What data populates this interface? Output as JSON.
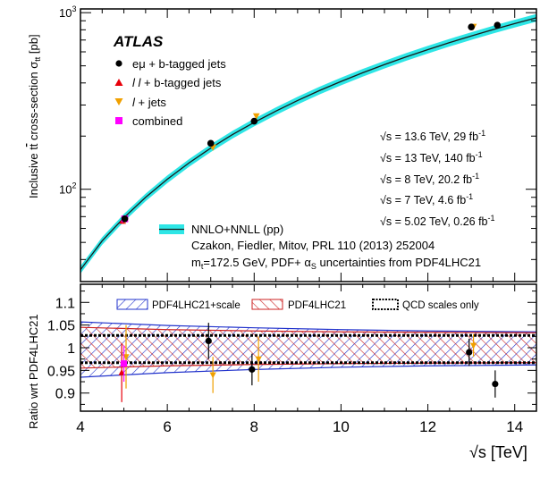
{
  "chart_data": [
    {
      "type": "scatter",
      "panel": "main",
      "title": "",
      "brand": "ATLAS",
      "ylabel_main": "Inclusive t",
      "ylabel_tbar": "t",
      "ylabel_rest": " cross-section  σ",
      "ylabel_sub": "tt",
      "ylabel_unit": " [pb]",
      "xlim": [
        4,
        14.5
      ],
      "ylim": [
        30,
        1050
      ],
      "yscale": "log",
      "y_ticks": [
        {
          "value": 100,
          "base": "10",
          "exp": "2"
        },
        {
          "value": 1000,
          "base": "10",
          "exp": "3"
        }
      ],
      "legend": [
        {
          "label": "eμ + b-tagged jets",
          "marker": "circle",
          "color": "#000000"
        },
        {
          "label_l1": "l",
          "label_l2": "l",
          "label_rest": " + b-tagged jets",
          "marker": "triangle-up",
          "color": "#e8000a"
        },
        {
          "label_l1": "l",
          "label_rest": " + jets",
          "marker": "triangle-down",
          "color": "#f0a000"
        },
        {
          "label": "combined",
          "marker": "square",
          "color": "#ff00ff"
        }
      ],
      "series": [
        {
          "name": "eμ + b-tagged jets",
          "points": [
            {
              "x": 5.02,
              "y": 68.0
            },
            {
              "x": 7.0,
              "y": 182.0
            },
            {
              "x": 8.0,
              "y": 243.0
            },
            {
              "x": 13.0,
              "y": 830.0
            },
            {
              "x": 13.6,
              "y": 850.0
            }
          ]
        },
        {
          "name": "l l + b-tagged jets",
          "points": [
            {
              "x": 4.97,
              "y": 66.0
            }
          ]
        },
        {
          "name": "l + jets",
          "points": [
            {
              "x": 5.02,
              "y": 67.0
            },
            {
              "x": 7.05,
              "y": 173.0
            },
            {
              "x": 8.05,
              "y": 260.0
            },
            {
              "x": 13.05,
              "y": 835.0
            }
          ]
        },
        {
          "name": "combined",
          "points": [
            {
              "x": 5.02,
              "y": 68.0
            }
          ]
        }
      ],
      "theory_curve": {
        "x": [
          4,
          4.5,
          5,
          5.5,
          6,
          6.5,
          7,
          7.5,
          8,
          8.5,
          9,
          9.5,
          10,
          10.5,
          11,
          11.5,
          12,
          12.5,
          13,
          13.5,
          14,
          14.5
        ],
        "y": [
          35,
          51,
          69,
          90,
          114,
          141,
          171,
          204,
          239,
          277,
          318,
          362,
          408,
          457,
          508,
          562,
          618,
          677,
          738,
          802,
          868,
          936
        ]
      },
      "theory_legend": "NNLO+NNLL (pp)",
      "theory_ref": "Czakon, Fiedler, Mitov, PRL 110 (2013) 252004",
      "theory_note_m": "m",
      "theory_note_sub": "t",
      "theory_note_rest": "=172.5 GeV, PDF+ α",
      "theory_note_sub2": "S",
      "theory_note_end": " uncertainties from PDF4LHC21",
      "lumi_labels": [
        {
          "sqrt": "√s",
          "text": " = 13.6 TeV, 29 fb",
          "sup": "-1"
        },
        {
          "sqrt": "√s",
          "text": " = 13 TeV, 140 fb",
          "sup": "-1"
        },
        {
          "sqrt": "√s",
          "text": " = 8 TeV, 20.2 fb",
          "sup": "-1"
        },
        {
          "sqrt": "√s",
          "text": " = 7 TeV, 4.6 fb",
          "sup": "-1"
        },
        {
          "sqrt": "√s",
          "text": " = 5.02 TeV, 0.26 fb",
          "sup": "-1"
        }
      ],
      "colors": {
        "band": "#2ee6e6",
        "curve": "#1a1a1a"
      }
    },
    {
      "type": "scatter",
      "panel": "ratio",
      "ylabel": "Ratio wrt PDF4LHC21",
      "xlabel_sqrt": "√s",
      "xlabel_rest": " [TeV]",
      "xlim": [
        4,
        14.5
      ],
      "ylim": [
        0.86,
        1.14
      ],
      "x_ticks": [
        4,
        6,
        8,
        10,
        12,
        14
      ],
      "y_ticks": [
        0.9,
        0.95,
        1,
        1.05,
        1.1
      ],
      "y_tick_labels": [
        "0.9",
        "0.95",
        "1",
        "1.05",
        "1.1"
      ],
      "legend": [
        {
          "label": "PDF4LHC21+scale",
          "style": "blue-hatch"
        },
        {
          "label": "PDF4LHC21",
          "style": "red-hatch"
        },
        {
          "label": "QCD scales only",
          "style": "dashed-box"
        }
      ],
      "bands": {
        "pdf_scale": {
          "x": [
            4,
            6,
            8,
            10,
            12,
            14.5
          ],
          "lo": [
            0.935,
            0.945,
            0.952,
            0.957,
            0.96,
            0.962
          ],
          "hi": [
            1.057,
            1.049,
            1.044,
            1.04,
            1.037,
            1.035
          ]
        },
        "pdf": {
          "x": [
            4,
            6,
            8,
            10,
            12,
            14.5
          ],
          "lo": [
            0.955,
            0.96,
            0.963,
            0.965,
            0.966,
            0.967
          ],
          "hi": [
            1.045,
            1.04,
            1.037,
            1.035,
            1.034,
            1.033
          ]
        },
        "scales": {
          "lo": 0.967,
          "hi": 1.027
        }
      },
      "series": [
        {
          "name": "eμ + b-tagged jets",
          "points": [
            {
              "x": 6.95,
              "y": 1.015,
              "err": 0.04
            },
            {
              "x": 7.95,
              "y": 0.952,
              "err": 0.035
            },
            {
              "x": 12.95,
              "y": 0.99,
              "err": 0.03
            },
            {
              "x": 13.55,
              "y": 0.92,
              "err": 0.03
            }
          ]
        },
        {
          "name": "l l + b-tagged jets",
          "points": [
            {
              "x": 4.95,
              "y": 0.945,
              "err": 0.065
            }
          ]
        },
        {
          "name": "l + jets",
          "points": [
            {
              "x": 5.05,
              "y": 0.98,
              "err": 0.07
            },
            {
              "x": 7.05,
              "y": 0.94,
              "err": 0.04
            },
            {
              "x": 8.1,
              "y": 0.975,
              "err": 0.05
            },
            {
              "x": 13.05,
              "y": 1.005,
              "err": 0.025
            }
          ]
        },
        {
          "name": "combined",
          "points": [
            {
              "x": 5.0,
              "y": 0.965,
              "err": 0.04
            }
          ]
        }
      ],
      "colors": {
        "blue": "#2233cc",
        "red": "#cc2222"
      }
    }
  ]
}
